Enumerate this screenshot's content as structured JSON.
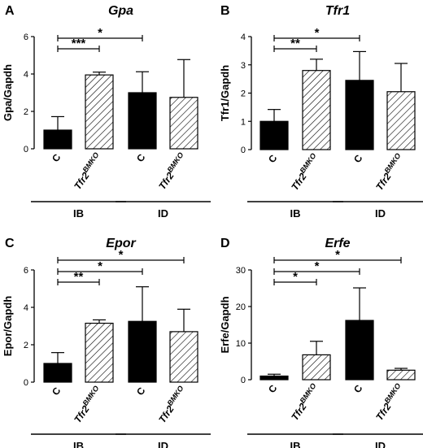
{
  "chart_data": [
    {
      "panel": "A",
      "type": "bar",
      "title": "Gpa",
      "ylabel": "Gpa/Gapdh",
      "ylim": [
        0,
        6
      ],
      "yticks": [
        "0",
        "2",
        "4",
        "6"
      ],
      "categories": [
        "C",
        "Tfr2BMKO",
        "C",
        "Tfr2BMKO"
      ],
      "groups": [
        "IB",
        "ID"
      ],
      "values": [
        1.0,
        3.95,
        3.0,
        2.75
      ],
      "errors": [
        0.72,
        0.15,
        1.12,
        2.02
      ],
      "significance": [
        {
          "from": 0,
          "to": 1,
          "label": "***"
        },
        {
          "from": 0,
          "to": 2,
          "label": "*"
        }
      ]
    },
    {
      "panel": "B",
      "type": "bar",
      "title": "Tfr1",
      "ylabel": "Tfr1/Gapdh",
      "ylim": [
        0,
        4
      ],
      "yticks": [
        "0",
        "1",
        "2",
        "3",
        "4"
      ],
      "categories": [
        "C",
        "Tfr2BMKO",
        "C",
        "Tfr2BMKO"
      ],
      "groups": [
        "IB",
        "ID"
      ],
      "values": [
        1.0,
        2.8,
        2.45,
        2.05
      ],
      "errors": [
        0.42,
        0.4,
        1.02,
        1.0
      ],
      "significance": [
        {
          "from": 0,
          "to": 1,
          "label": "**"
        },
        {
          "from": 0,
          "to": 2,
          "label": "*"
        }
      ]
    },
    {
      "panel": "C",
      "type": "bar",
      "title": "Epor",
      "ylabel": "Epor/Gapdh",
      "ylim": [
        0,
        6
      ],
      "yticks": [
        "0",
        "2",
        "4",
        "6"
      ],
      "categories": [
        "C",
        "Tfr2BMKO",
        "C",
        "Tfr2BMKO"
      ],
      "groups": [
        "IB",
        "ID"
      ],
      "values": [
        1.0,
        3.15,
        3.25,
        2.7
      ],
      "errors": [
        0.58,
        0.18,
        1.85,
        1.2
      ],
      "significance": [
        {
          "from": 0,
          "to": 1,
          "label": "**"
        },
        {
          "from": 0,
          "to": 2,
          "label": "*"
        },
        {
          "from": 0,
          "to": 3,
          "label": "*"
        }
      ]
    },
    {
      "panel": "D",
      "type": "bar",
      "title": "Erfe",
      "ylabel": "Erfe/Gapdh",
      "ylim": [
        0,
        30
      ],
      "yticks": [
        "0",
        "10",
        "20",
        "30"
      ],
      "categories": [
        "C",
        "Tfr2BMKO",
        "C",
        "Tfr2BMKO"
      ],
      "groups": [
        "IB",
        "ID"
      ],
      "values": [
        1.0,
        6.8,
        16.2,
        2.6
      ],
      "errors": [
        0.5,
        3.7,
        8.9,
        0.5
      ],
      "significance": [
        {
          "from": 0,
          "to": 1,
          "label": "*"
        },
        {
          "from": 0,
          "to": 2,
          "label": "*"
        },
        {
          "from": 0,
          "to": 3,
          "label": "*"
        }
      ]
    }
  ]
}
